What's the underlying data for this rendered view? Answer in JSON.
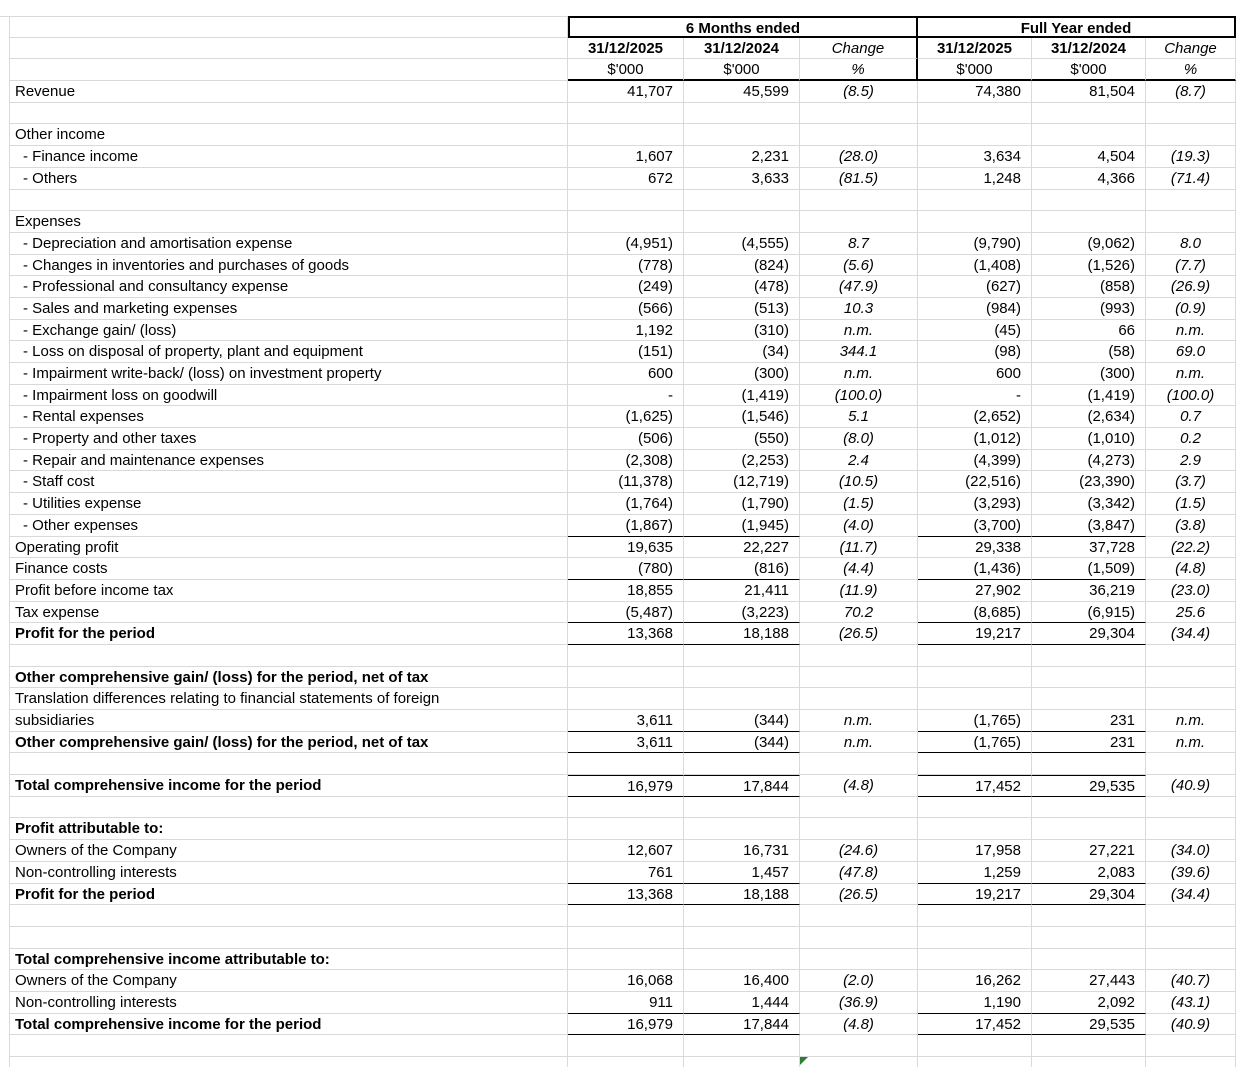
{
  "colors": {
    "grid": "#d9d9d9",
    "border": "#000000",
    "formula_indicator_green": "#2e7d32",
    "comment_indicator_red": "#e8391d"
  },
  "header": {
    "period1": "6 Months ended",
    "period2": "Full Year ended",
    "date1": "31/12/2025",
    "date2": "31/12/2024",
    "change": "Change",
    "units": "$'000",
    "pct": "%"
  },
  "rows": [
    {
      "label": "Revenue",
      "v": [
        "41,707",
        "45,599",
        "(8.5)",
        "74,380",
        "81,504",
        "(8.7)"
      ]
    },
    {
      "label": ""
    },
    {
      "label": "Other income"
    },
    {
      "label": "- Finance income",
      "ind": 1,
      "v": [
        "1,607",
        "2,231",
        "(28.0)",
        "3,634",
        "4,504",
        "(19.3)"
      ]
    },
    {
      "label": "- Others",
      "ind": 1,
      "v": [
        "672",
        "3,633",
        "(81.5)",
        "1,248",
        "4,366",
        "(71.4)"
      ]
    },
    {
      "label": ""
    },
    {
      "label": "Expenses"
    },
    {
      "label": "- Depreciation and amortisation expense",
      "ind": 1,
      "v": [
        "(4,951)",
        "(4,555)",
        "8.7",
        "(9,790)",
        "(9,062)",
        "8.0"
      ]
    },
    {
      "label": "- Changes in inventories and purchases of goods",
      "ind": 1,
      "v": [
        "(778)",
        "(824)",
        "(5.6)",
        "(1,408)",
        "(1,526)",
        "(7.7)"
      ]
    },
    {
      "label": "- Professional and consultancy expense",
      "ind": 1,
      "v": [
        "(249)",
        "(478)",
        "(47.9)",
        "(627)",
        "(858)",
        "(26.9)"
      ]
    },
    {
      "label": "- Sales and marketing expenses",
      "ind": 1,
      "v": [
        "(566)",
        "(513)",
        "10.3",
        "(984)",
        "(993)",
        "(0.9)"
      ]
    },
    {
      "label": "- Exchange gain/ (loss)",
      "ind": 1,
      "v": [
        "1,192",
        "(310)",
        "n.m.",
        "(45)",
        "66",
        "n.m."
      ]
    },
    {
      "label": "- Loss on disposal of property, plant and equipment",
      "ind": 1,
      "v": [
        "(151)",
        "(34)",
        "344.1",
        "(98)",
        "(58)",
        "69.0"
      ]
    },
    {
      "label": "- Impairment write-back/ (loss) on investment property",
      "ind": 1,
      "v": [
        "600",
        "(300)",
        "n.m.",
        "600",
        "(300)",
        "n.m."
      ]
    },
    {
      "label": "- Impairment loss on goodwill",
      "ind": 1,
      "v": [
        "-",
        "(1,419)",
        "(100.0)",
        "-",
        "(1,419)",
        "(100.0)"
      ]
    },
    {
      "label": "- Rental expenses",
      "ind": 1,
      "v": [
        "(1,625)",
        "(1,546)",
        "5.1",
        "(2,652)",
        "(2,634)",
        "0.7"
      ]
    },
    {
      "label": "- Property and other taxes",
      "ind": 1,
      "v": [
        "(506)",
        "(550)",
        "(8.0)",
        "(1,012)",
        "(1,010)",
        "0.2"
      ]
    },
    {
      "label": "- Repair and maintenance expenses",
      "ind": 1,
      "v": [
        "(2,308)",
        "(2,253)",
        "2.4",
        "(4,399)",
        "(4,273)",
        "2.9"
      ]
    },
    {
      "label": "- Staff cost",
      "ind": 1,
      "r": 1,
      "v": [
        "(11,378)",
        "(12,719)",
        "(10.5)",
        "(22,516)",
        "(23,390)",
        "(3.7)"
      ]
    },
    {
      "label": "- Utilities expense",
      "ind": 1,
      "v": [
        "(1,764)",
        "(1,790)",
        "(1.5)",
        "(3,293)",
        "(3,342)",
        "(1.5)"
      ]
    },
    {
      "label": "- Other expenses",
      "ind": 1,
      "ub": 1,
      "v": [
        "(1,867)",
        "(1,945)",
        "(4.0)",
        "(3,700)",
        "(3,847)",
        "(3.8)"
      ]
    },
    {
      "label": "Operating profit",
      "g": [
        2
      ],
      "v": [
        "19,635",
        "22,227",
        "(11.7)",
        "29,338",
        "37,728",
        "(22.2)"
      ]
    },
    {
      "label": "Finance costs",
      "ub": 1,
      "v": [
        "(780)",
        "(816)",
        "(4.4)",
        "(1,436)",
        "(1,509)",
        "(4.8)"
      ]
    },
    {
      "label": "Profit before income tax",
      "g": [
        2
      ],
      "v": [
        "18,855",
        "21,411",
        "(11.9)",
        "27,902",
        "36,219",
        "(23.0)"
      ]
    },
    {
      "label": "Tax expense",
      "ub": 1,
      "g": [
        0,
        1,
        3,
        4
      ],
      "v": [
        "(5,487)",
        "(3,223)",
        "70.2",
        "(8,685)",
        "(6,915)",
        "25.6"
      ]
    },
    {
      "label": "Profit for the period",
      "b": 1,
      "ub": 1,
      "g": [
        2
      ],
      "v": [
        "13,368",
        "18,188",
        "(26.5)",
        "19,217",
        "29,304",
        "(34.4)"
      ]
    },
    {
      "label": ""
    },
    {
      "label": "Other comprehensive gain/ (loss) for the period, net of tax",
      "b": 1
    },
    {
      "label": "Translation differences relating to financial statements of foreign"
    },
    {
      "label": "subsidiaries",
      "ub": 1,
      "v": [
        "3,611",
        "(344)",
        "n.m.",
        "(1,765)",
        "231",
        "n.m."
      ]
    },
    {
      "label": "Other comprehensive gain/ (loss) for the period, net of tax",
      "b": 1,
      "ub": 1,
      "v": [
        "3,611",
        "(344)",
        "n.m.",
        "(1,765)",
        "231",
        "n.m."
      ]
    },
    {
      "label": ""
    },
    {
      "label": "Total comprehensive income for the period",
      "b": 1,
      "tb": 1,
      "ub": 1,
      "g": [
        2
      ],
      "v": [
        "16,979",
        "17,844",
        "(4.8)",
        "17,452",
        "29,535",
        "(40.9)"
      ]
    },
    {
      "label": ""
    },
    {
      "label": "Profit attributable to:",
      "b": 1
    },
    {
      "label": "Owners of the Company",
      "v": [
        "12,607",
        "16,731",
        "(24.6)",
        "17,958",
        "27,221",
        "(34.0)"
      ]
    },
    {
      "label": "Non-controlling interests",
      "ub": 1,
      "v": [
        "761",
        "1,457",
        "(47.8)",
        "1,259",
        "2,083",
        "(39.6)"
      ]
    },
    {
      "label": "Profit for the period",
      "b": 1,
      "ub": 1,
      "g": [
        2
      ],
      "v": [
        "13,368",
        "18,188",
        "(26.5)",
        "19,217",
        "29,304",
        "(34.4)"
      ]
    },
    {
      "label": ""
    },
    {
      "label": ""
    },
    {
      "label": "Total comprehensive income attributable to:",
      "b": 1
    },
    {
      "label": "Owners of the Company",
      "v": [
        "16,068",
        "16,400",
        "(2.0)",
        "16,262",
        "27,443",
        "(40.7)"
      ]
    },
    {
      "label": "Non-controlling interests",
      "ub": 1,
      "v": [
        "911",
        "1,444",
        "(36.9)",
        "1,190",
        "2,092",
        "(43.1)"
      ]
    },
    {
      "label": "Total comprehensive income for the period",
      "b": 1,
      "ub": 1,
      "g": [
        2
      ],
      "v": [
        "16,979",
        "17,844",
        "(4.8)",
        "17,452",
        "29,535",
        "(40.9)"
      ]
    },
    {
      "label": ""
    },
    {
      "label": "",
      "g": [
        2
      ]
    }
  ]
}
